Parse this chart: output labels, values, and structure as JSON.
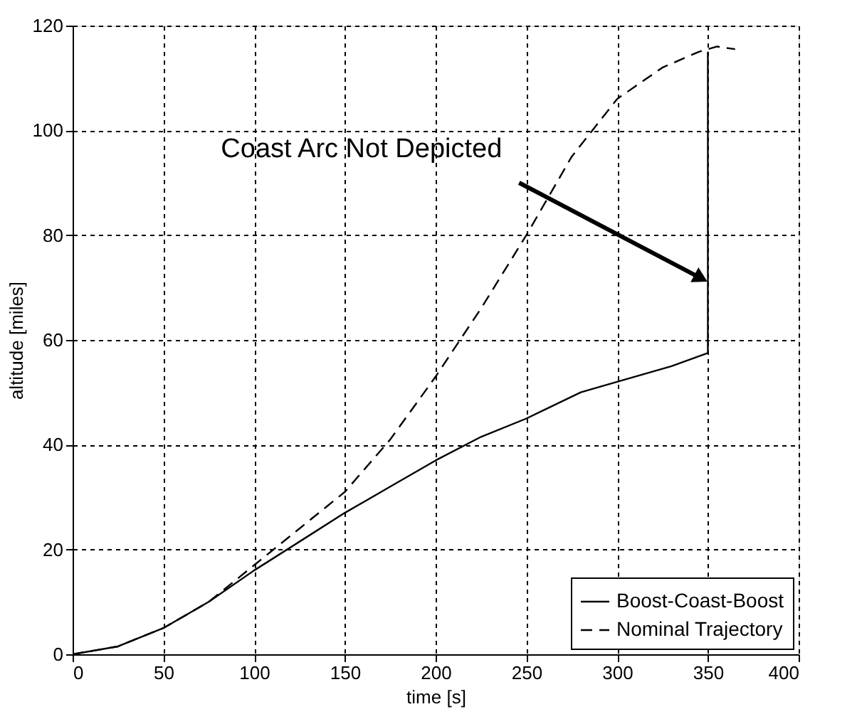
{
  "chart_data": {
    "type": "line",
    "xlabel": "time [s]",
    "ylabel": "altitude [miles]",
    "xlim": [
      0,
      400
    ],
    "xticks": [
      0,
      50,
      100,
      150,
      200,
      250,
      300,
      350,
      400
    ],
    "ylim": [
      0,
      120
    ],
    "yticks": [
      0,
      20,
      40,
      60,
      80,
      100,
      120
    ],
    "grid": true,
    "legend": "bottom right",
    "annotations": [
      {
        "text": "Coast Arc Not Depicted",
        "x": 350,
        "y": 72
      }
    ],
    "series": [
      {
        "name": "Boost-Coast-Boost",
        "color": "#000000",
        "line_style": "solid",
        "x": [
          0,
          25,
          50,
          75,
          100,
          125,
          150,
          175,
          200,
          225,
          250,
          280,
          300,
          330,
          350,
          350
        ],
        "values": [
          0,
          1.5,
          5,
          10,
          16,
          21.5,
          27,
          32,
          37,
          41.5,
          45,
          50,
          52,
          55,
          57.5,
          115
        ]
      },
      {
        "name": "Nominal Trajectory",
        "color": "#000000",
        "line_style": "dashed",
        "x": [
          0,
          25,
          50,
          75,
          100,
          125,
          150,
          175,
          200,
          225,
          250,
          275,
          300,
          325,
          345,
          355,
          365
        ],
        "values": [
          0,
          1.5,
          5,
          10,
          17,
          24,
          31,
          41,
          53,
          66,
          80,
          95,
          106,
          112,
          115,
          116,
          115.5
        ]
      }
    ]
  }
}
